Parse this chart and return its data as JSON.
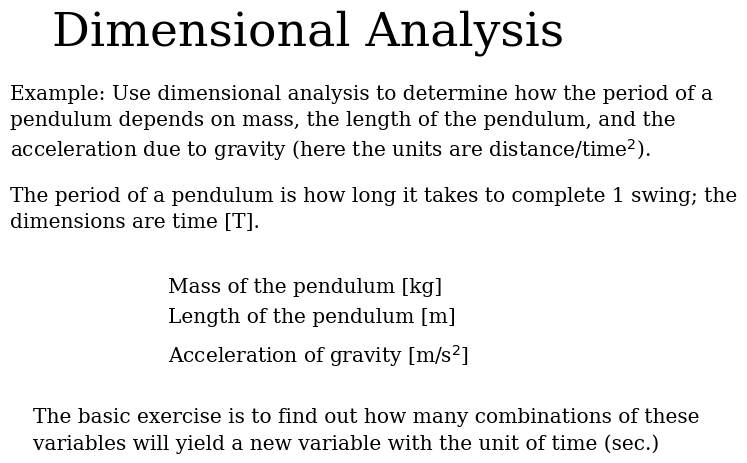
{
  "title": "Dimensional Analysis",
  "title_fontsize": 34,
  "title_font": "DejaVu Serif",
  "background_color": "#ffffff",
  "text_color": "#000000",
  "body_fontsize": 14.5,
  "body_font": "DejaVu Serif",
  "paragraph1_line1": "Example: Use dimensional analysis to determine how the period of a",
  "paragraph1_line2": "pendulum depends on mass, the length of the pendulum, and the",
  "paragraph1_line3": "acceleration due to gravity (here the units are distance/time$^{2}$).",
  "paragraph2_line1": "The period of a pendulum is how long it takes to complete 1 swing; the",
  "paragraph2_line2": "dimensions are time [T].",
  "item1": "Mass of the pendulum [kg]",
  "item2": "Length of the pendulum [m]",
  "item3": "Acceleration of gravity [m/s$^{2}$]",
  "paragraph3_line1": "The basic exercise is to find out how many combinations of these",
  "paragraph3_line2": "variables will yield a new variable with the unit of time (sec.)"
}
